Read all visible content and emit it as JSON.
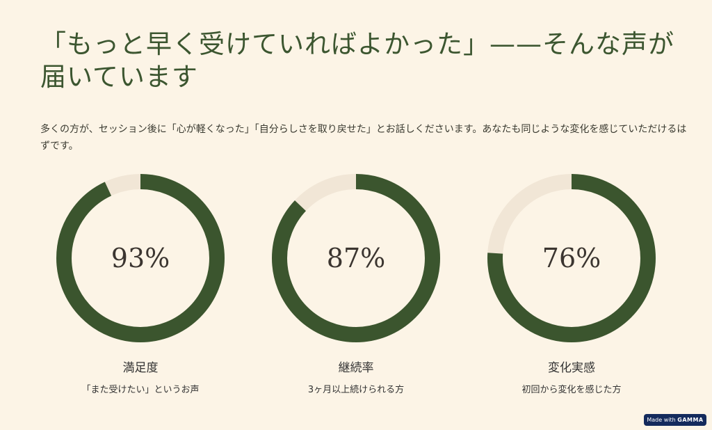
{
  "title": "「もっと早く受けていればよかった」——そんな声が届いています",
  "subtitle": "多くの方が、セッション後に「心が軽くなった」「自分らしさを取り戻せた」とお話しくださいます。あなたも同じような変化を感じていただけるはずです。",
  "stats": [
    {
      "percent_label": "93%",
      "value": 93,
      "label": "満足度",
      "description": "「また受けたい」というお声"
    },
    {
      "percent_label": "87%",
      "value": 87,
      "label": "継続率",
      "description": "3ヶ月以上続けられる方"
    },
    {
      "percent_label": "76%",
      "value": 76,
      "label": "変化実感",
      "description": "初回から変化を感じた方"
    }
  ],
  "colors": {
    "accent": "#3b552e",
    "track": "#f1e6d6",
    "background": "#fcf4e6"
  },
  "badge": {
    "prefix": "Made with",
    "brand": "GAMMA"
  }
}
